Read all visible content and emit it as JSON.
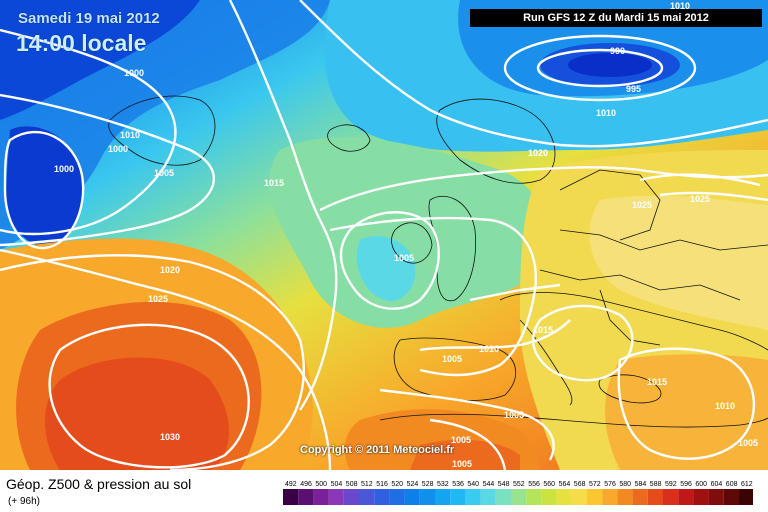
{
  "header": {
    "date": "Samedi 19 mai 2012",
    "local_time": "14:00 locale",
    "run": "Run GFS 12 Z du Mardi 15 mai 2012"
  },
  "copyright": "Copyright © 2011 Meteociel.fr",
  "footer": {
    "title": "Géop. Z500 & pression au sol",
    "subtitle": "(+ 96h)"
  },
  "isobar_labels": [
    "1010",
    "1000",
    "990",
    "995",
    "1010",
    "1000",
    "1010",
    "1005",
    "1000",
    "1005",
    "1015",
    "1020",
    "1025",
    "1025",
    "1025",
    "1020",
    "1005",
    "1015",
    "1005",
    "1010",
    "1015",
    "1010",
    "1005",
    "1005",
    "1005",
    "1030",
    "1005"
  ],
  "legend": {
    "labels": [
      "492",
      "496",
      "500",
      "504",
      "508",
      "512",
      "516",
      "520",
      "524",
      "528",
      "532",
      "536",
      "540",
      "544",
      "548",
      "552",
      "556",
      "560",
      "564",
      "568",
      "572",
      "576",
      "580",
      "584",
      "588",
      "592",
      "596",
      "600",
      "604",
      "608",
      "612"
    ],
    "colors": [
      "#3a0044",
      "#5a1070",
      "#7a2098",
      "#8a38b8",
      "#6a48cc",
      "#4a58d8",
      "#3060e0",
      "#1f6ee6",
      "#0c7fe8",
      "#1090ec",
      "#14a4f0",
      "#20b8f2",
      "#3acbf0",
      "#5ad8e6",
      "#7ae0c2",
      "#98e290",
      "#b4e45a",
      "#cce240",
      "#e6e040",
      "#f6dc46",
      "#fcc632",
      "#f8a82a",
      "#f28a22",
      "#ec6a1e",
      "#e44c1c",
      "#d8301a",
      "#c01818",
      "#a01010",
      "#800c0c",
      "#5e0808",
      "#3a0404"
    ]
  },
  "colors": {
    "isobar": "#ffffff",
    "run_box": "#000000"
  }
}
